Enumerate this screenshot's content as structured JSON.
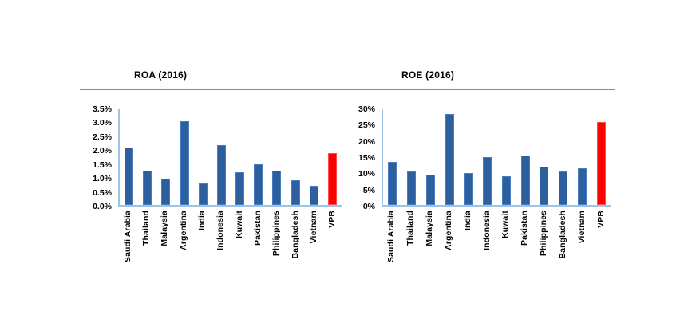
{
  "page": {
    "background": "#ffffff"
  },
  "header": {
    "divider_color": "#8a8a8a"
  },
  "colors": {
    "bar_blue": "#2d5f9e",
    "bar_blue_border": "#4a7cc0",
    "bar_red": "#fe0000",
    "bar_red_border": "#ff4d4d",
    "axis_line": "#9dc3e6",
    "text": "#000000"
  },
  "chart_data": [
    {
      "type": "bar",
      "title": "ROA (2016)",
      "categories": [
        "Saudi Arabia",
        "Thailand",
        "Malaysia",
        "Argentina",
        "India",
        "Indonesia",
        "Kuwait",
        "Pakistan",
        "Philippines",
        "Bangladesh",
        "Vietnam",
        "VPB"
      ],
      "values": [
        2.1,
        1.25,
        0.95,
        3.05,
        0.8,
        2.2,
        1.2,
        1.5,
        1.25,
        0.9,
        0.7,
        1.9
      ],
      "unit": "%",
      "highlight_category": "VPB",
      "ylim": [
        0,
        3.5
      ],
      "yticks": [
        3.5,
        3.0,
        2.5,
        2.0,
        1.5,
        1.0,
        0.5,
        0.0
      ],
      "ytick_labels": [
        "3.5%",
        "3.0%",
        "2.5%",
        "2.0%",
        "1.5%",
        "1.0%",
        "0.5%",
        "0.0%"
      ],
      "grid": false,
      "legend": false
    },
    {
      "type": "bar",
      "title": "ROE (2016)",
      "categories": [
        "Saudi Arabia",
        "Thailand",
        "Malaysia",
        "Argentina",
        "India",
        "Indonesia",
        "Kuwait",
        "Pakistan",
        "Philippines",
        "Bangladesh",
        "Vietnam",
        "VPB"
      ],
      "values": [
        13.5,
        10.5,
        9.5,
        28.5,
        10,
        15,
        9,
        15.5,
        12,
        10.5,
        11.5,
        26
      ],
      "unit": "%",
      "highlight_category": "VPB",
      "ylim": [
        0,
        30
      ],
      "yticks": [
        30,
        25,
        20,
        15,
        10,
        5,
        0
      ],
      "ytick_labels": [
        "30%",
        "25%",
        "20%",
        "15%",
        "10%",
        "5%",
        "0%"
      ],
      "grid": false,
      "legend": false
    }
  ]
}
